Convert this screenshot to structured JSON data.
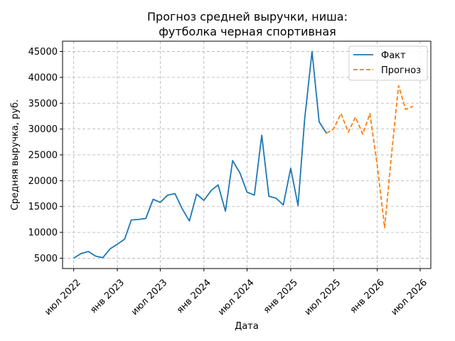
{
  "chart_data": {
    "type": "line",
    "title": [
      "Прогноз средней выручки, ниша:",
      "футболка черная спортивная"
    ],
    "xlabel": "Дата",
    "ylabel": "Средняя выручка, руб.",
    "grid": true,
    "legend_position": "top-right",
    "x_ticks": [
      "2022-07-01",
      "2023-01-01",
      "2023-07-01",
      "2024-01-01",
      "2024-07-01",
      "2025-01-01",
      "2025-07-01",
      "2026-01-01",
      "2026-07-01"
    ],
    "x_tick_labels": [
      "июл 2022",
      "янв 2023",
      "июл 2023",
      "янв 2024",
      "июл 2024",
      "янв 2025",
      "июл 2025",
      "янв 2026",
      "июл 2026"
    ],
    "xlim": [
      "2022-05-15",
      "2026-08-15"
    ],
    "y_ticks": [
      5000,
      10000,
      15000,
      20000,
      25000,
      30000,
      35000,
      40000,
      45000
    ],
    "y_tick_labels": [
      "5000",
      "10000",
      "15000",
      "20000",
      "25000",
      "30000",
      "35000",
      "40000",
      "45000"
    ],
    "ylim": [
      3000,
      47000
    ],
    "series": [
      {
        "name": "Факт",
        "color": "#1f77b4",
        "style": "solid",
        "x": [
          "2022-07-01",
          "2022-08-01",
          "2022-09-01",
          "2022-10-01",
          "2022-11-01",
          "2022-12-01",
          "2023-01-01",
          "2023-02-01",
          "2023-03-01",
          "2023-04-01",
          "2023-05-01",
          "2023-06-01",
          "2023-07-01",
          "2023-08-01",
          "2023-09-01",
          "2023-10-01",
          "2023-11-01",
          "2023-12-01",
          "2024-01-01",
          "2024-02-01",
          "2024-03-01",
          "2024-04-01",
          "2024-05-01",
          "2024-06-01",
          "2024-07-01",
          "2024-08-01",
          "2024-09-01",
          "2024-10-01",
          "2024-11-01",
          "2024-12-01",
          "2025-01-01",
          "2025-02-01",
          "2025-03-01",
          "2025-04-01",
          "2025-05-01",
          "2025-06-01"
        ],
        "y": [
          5000,
          5900,
          6300,
          5400,
          5100,
          6800,
          7700,
          8700,
          12400,
          12500,
          12700,
          16400,
          15800,
          17200,
          17500,
          14600,
          12200,
          17400,
          16200,
          18100,
          19200,
          14100,
          23900,
          21500,
          17800,
          17200,
          28800,
          17000,
          16600,
          15300,
          22400,
          15200,
          32000,
          45000,
          31400,
          29200
        ]
      },
      {
        "name": "Прогноз",
        "color": "#ff7f0e",
        "style": "dashed",
        "x": [
          "2025-06-01",
          "2025-07-01",
          "2025-08-01",
          "2025-09-01",
          "2025-10-01",
          "2025-11-01",
          "2025-12-01",
          "2026-01-01",
          "2026-02-01",
          "2026-03-01",
          "2026-04-01",
          "2026-05-01",
          "2026-06-01"
        ],
        "y": [
          29200,
          30000,
          33000,
          29400,
          32300,
          29000,
          33000,
          23000,
          10900,
          24500,
          38400,
          33800,
          34400
        ]
      }
    ]
  }
}
